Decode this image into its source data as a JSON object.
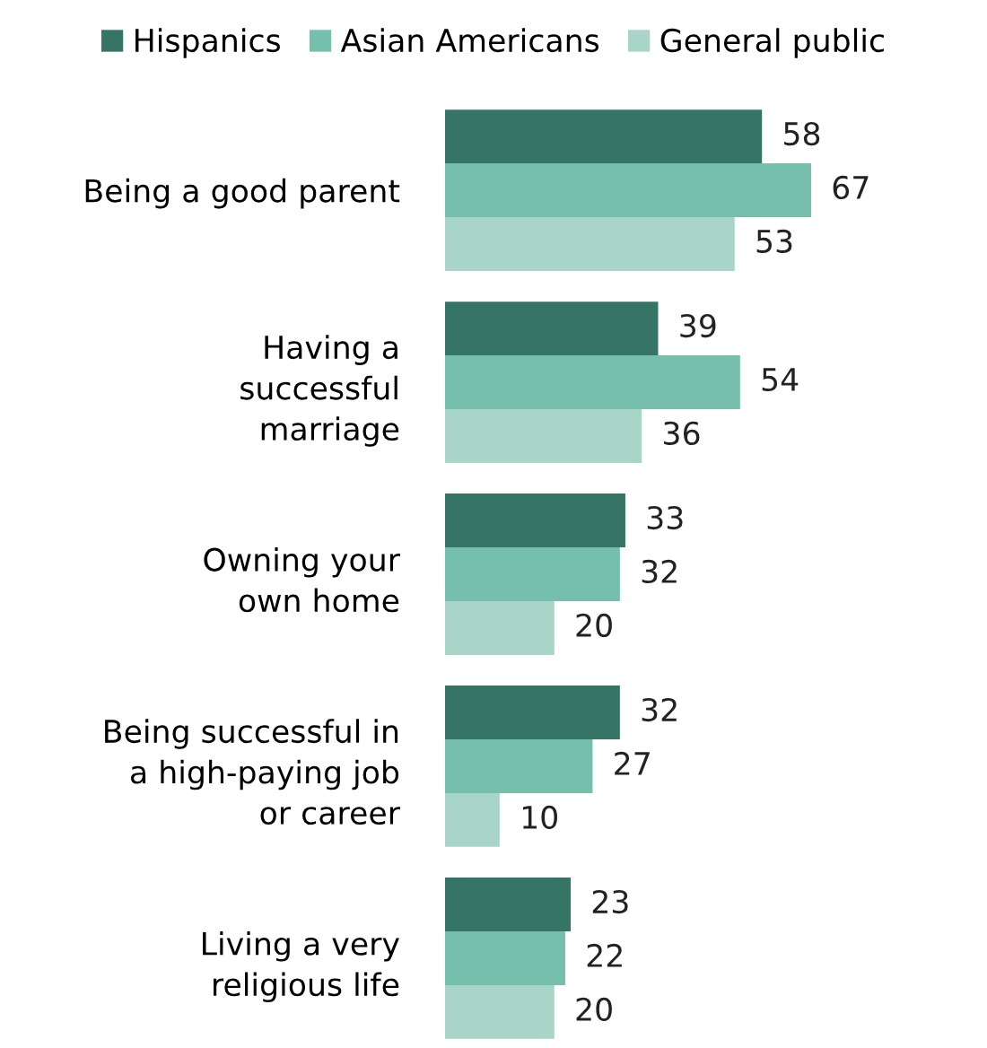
{
  "chart_data": {
    "type": "bar",
    "orientation": "horizontal",
    "categories": [
      "Being a good parent",
      "Having a\nsuccessful\nmarriage",
      "Owning your\nown home",
      "Being successful in\na high-paying job\nor career",
      "Living a very\nreligious life"
    ],
    "series": [
      {
        "name": "Hispanics",
        "color": "#367565",
        "values": [
          58,
          39,
          33,
          32,
          23
        ]
      },
      {
        "name": "Asian Americans",
        "color": "#76bfad",
        "values": [
          67,
          54,
          32,
          27,
          22
        ]
      },
      {
        "name": "General public",
        "color": "#a8d5c8",
        "values": [
          53,
          36,
          20,
          10,
          20
        ]
      }
    ],
    "tick_labels": "y",
    "data_labels": true,
    "legend": "top",
    "grid": false
  }
}
